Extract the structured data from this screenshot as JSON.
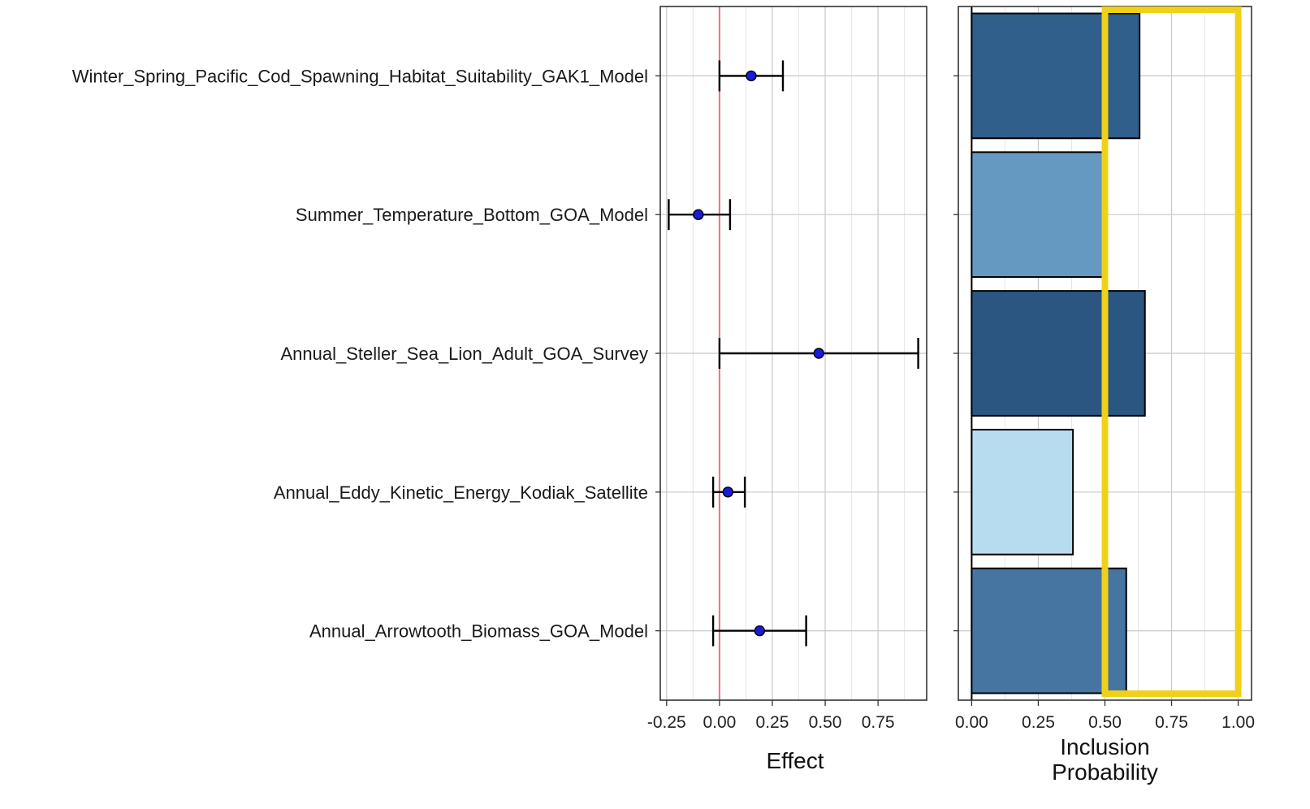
{
  "chart_data": [
    {
      "type": "errorbar",
      "categories": [
        "Winter_Spring_Pacific_Cod_Spawning_Habitat_Suitability_GAK1_Model",
        "Summer_Temperature_Bottom_GOA_Model",
        "Annual_Steller_Sea_Lion_Adult_GOA_Survey",
        "Annual_Eddy_Kinetic_Energy_Kodiak_Satellite",
        "Annual_Arrowtooth_Biomass_GOA_Model"
      ],
      "estimates": [
        0.15,
        -0.1,
        0.47,
        0.04,
        0.19
      ],
      "lower": [
        0.0,
        -0.24,
        0.0,
        -0.03,
        -0.03
      ],
      "upper": [
        0.3,
        0.05,
        0.94,
        0.12,
        0.41
      ],
      "xlabel": "Effect",
      "xlim": [
        -0.28,
        0.98
      ],
      "xticks": [
        -0.25,
        0.0,
        0.25,
        0.5,
        0.75
      ],
      "xtick_labels": [
        "-0.25",
        "0.00",
        "0.25",
        "0.50",
        "0.75"
      ],
      "reference_line": 0.0,
      "reference_line_color": "#e8747c",
      "point_color": "#1a1adb",
      "grid": true
    },
    {
      "type": "bar",
      "orientation": "horizontal",
      "categories": [
        "Winter_Spring_Pacific_Cod_Spawning_Habitat_Suitability_GAK1_Model",
        "Summer_Temperature_Bottom_GOA_Model",
        "Annual_Steller_Sea_Lion_Adult_GOA_Survey",
        "Annual_Eddy_Kinetic_Energy_Kodiak_Satellite",
        "Annual_Arrowtooth_Biomass_GOA_Model"
      ],
      "values": [
        0.63,
        0.5,
        0.65,
        0.38,
        0.58
      ],
      "bar_colors": [
        "#305f8b",
        "#6699c2",
        "#2b5682",
        "#b8dcef",
        "#4675a2"
      ],
      "xlabel": "Inclusion\nProbability",
      "xlim": [
        -0.05,
        1.05
      ],
      "xticks": [
        0.0,
        0.25,
        0.5,
        0.75,
        1.0
      ],
      "xtick_labels": [
        "0.00",
        "0.25",
        "0.50",
        "0.75",
        "1.00"
      ],
      "highlight_range": [
        0.5,
        1.0
      ],
      "highlight_color": "#f0d11a",
      "grid": true
    }
  ]
}
